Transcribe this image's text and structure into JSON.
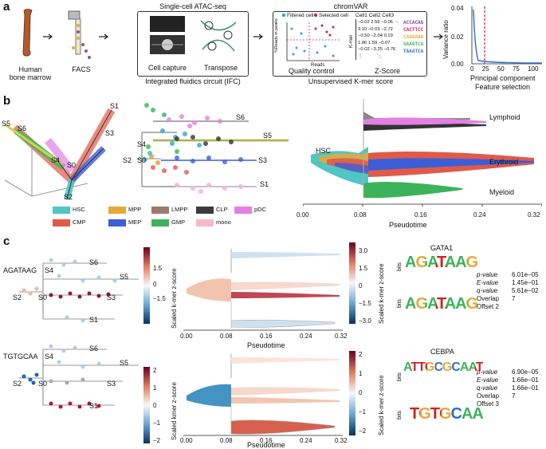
{
  "panel_a": {
    "letter": "a",
    "bone_label": "Human\nbone marrow",
    "facs_label": "FACS",
    "atac": {
      "header": "Single-cell ATAC-seq",
      "capture_label": "Cell capture",
      "transpose_label": "Transpose",
      "footer": "Integrated fluidics circuit (IFC)"
    },
    "chromvar": {
      "header": "chromVAR",
      "legend_filtered": "Filtered cell",
      "legend_selected": "Selected cell",
      "qc_ylabel": "%Reads in peaks",
      "qc_xlabel": "Reads",
      "qc_title": "Quality control",
      "z_title": "Z-Score",
      "z_cols": [
        "Cell1",
        "Cell2",
        "Cell3"
      ],
      "z_ylabel": "K-mer",
      "z_rows": [
        [
          "−0.02",
          "2.56",
          "−0.06"
        ],
        [
          "3.10",
          "−0.03",
          "−2.72"
        ],
        [
          "−0.50",
          "−2.04",
          "0.19"
        ],
        [
          "1.86",
          "1.59",
          "−0.07"
        ],
        [
          "−0.02",
          "−3.25",
          "−0.76"
        ]
      ],
      "kmers": [
        "ACCACAG",
        "CACTTCC",
        "CAGGAAA",
        "GAAGTCA",
        "TAAATCA"
      ],
      "footer": "Unsupervised K-mer score"
    },
    "variance": {
      "ylabel": "Variance ratio",
      "xlabel": "Principal component",
      "footer": "Feature selection",
      "yticks": [
        "0.00",
        "0.02",
        "0.04"
      ],
      "xticks": [
        "0",
        "25",
        "50",
        "75",
        "100"
      ]
    }
  },
  "panel_b": {
    "letter": "b",
    "left_labels": [
      "S1",
      "S3",
      "S5",
      "S6",
      "S4",
      "S0",
      "S2"
    ],
    "mid_labels": [
      "S6",
      "S5",
      "S4",
      "S3",
      "S2",
      "S0",
      "S1"
    ],
    "stream_labels": [
      "HSC",
      "Lymphoid",
      "Erythroid",
      "Myeloid"
    ],
    "pseudotime_ticks": [
      "0.00",
      "0.08",
      "0.16",
      "0.24",
      "0.32"
    ],
    "pseudotime_label": "Pseudotime",
    "legend": [
      {
        "name": "HSC",
        "color": "#4fc6c4"
      },
      {
        "name": "MPP",
        "color": "#e8a838"
      },
      {
        "name": "LMPP",
        "color": "#9c7b6a"
      },
      {
        "name": "CLP",
        "color": "#3b3b3b"
      },
      {
        "name": "pDC",
        "color": "#e47fe4"
      },
      {
        "name": "CMP",
        "color": "#e05a4a"
      },
      {
        "name": "MEP",
        "color": "#3c5ed6"
      },
      {
        "name": "GMP",
        "color": "#3cb35a"
      },
      {
        "name": "mono",
        "color": "#f6b9c6"
      }
    ]
  },
  "panel_c": {
    "letter": "c",
    "rows": [
      {
        "kmer": "AGATAAG",
        "labels": [
          "S6",
          "S4",
          "S5",
          "S2",
          "S0",
          "S3",
          "S1"
        ],
        "cbar_left_ticks": [
          "1.5",
          "0",
          "−1.5"
        ],
        "cbar_left_label": "Scaled k-mer z-score",
        "cbar_right_ticks": [
          "3.0",
          "1.5",
          "0",
          "−1.5",
          "−3.0"
        ],
        "cbar_right_label": "Scaled k-mer z-score",
        "xticks": [
          "0.00",
          "0.08",
          "0.16",
          "0.24",
          "0.32"
        ],
        "xlabel": "Pseudotime",
        "motif_name": "GATA1",
        "motif_top": "AGATAAG",
        "motif_bottom": "AGATAAG",
        "bits_label": "bits",
        "stats": [
          {
            "key": "p-value",
            "value": "6.01e−05"
          },
          {
            "key": "E-value",
            "value": "1.45e−01"
          },
          {
            "key": "q-value",
            "value": "5.61e−02"
          },
          {
            "key": "Overlap",
            "value": "7"
          },
          {
            "key": "Offset",
            "value": "2"
          }
        ]
      },
      {
        "kmer": "TGTGCAA",
        "labels": [
          "S6",
          "S4",
          "S5",
          "S2",
          "S0",
          "S3",
          "S1"
        ],
        "cbar_left_ticks": [
          "2",
          "1",
          "0",
          "−1",
          "−2"
        ],
        "cbar_left_label": "Scaled kmer z-score",
        "cbar_right_ticks": [
          "2",
          "1",
          "0",
          "−1",
          "−2"
        ],
        "cbar_right_label": "Scaled k-mer z-score",
        "xticks": [
          "0.00",
          "0.08",
          "0.16",
          "0.24",
          "0.32"
        ],
        "xlabel": "Pseudotime",
        "motif_name": "CEBPA",
        "motif_top": "ATTGCGCAAT",
        "motif_bottom": "TGTGCAA",
        "bits_label": "bits",
        "stats": [
          {
            "key": "p-value",
            "value": "6.90e−05"
          },
          {
            "key": "E-value",
            "value": "1.66e−01"
          },
          {
            "key": "q-value",
            "value": "1.66e−01"
          },
          {
            "key": "Overlap",
            "value": "7"
          },
          {
            "key": "Offset",
            "value": "3"
          }
        ]
      }
    ]
  }
}
